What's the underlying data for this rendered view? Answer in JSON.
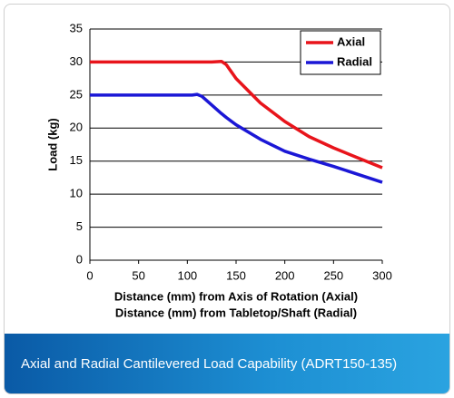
{
  "chart_data": {
    "type": "line",
    "x_label": [
      "Distance (mm) from Axis of Rotation (Axial)",
      "Distance (mm) from Tabletop/Shaft (Radial)"
    ],
    "y_label": "Load (kg)",
    "x": [
      0,
      100,
      105,
      110,
      115,
      125,
      135,
      140,
      150,
      175,
      200,
      225,
      250,
      275,
      300
    ],
    "series": [
      {
        "name": "Axial",
        "color": "#e8141b",
        "values": [
          30,
          30,
          30,
          30,
          30,
          30,
          30.1,
          29.6,
          27.5,
          23.8,
          21,
          18.7,
          17,
          15.5,
          14
        ]
      },
      {
        "name": "Radial",
        "color": "#1b17d6",
        "values": [
          25,
          25,
          25,
          25.1,
          24.8,
          23.5,
          22.2,
          21.6,
          20.5,
          18.3,
          16.5,
          15.3,
          14.2,
          13,
          11.8
        ]
      }
    ],
    "xlim": [
      0,
      300
    ],
    "xticks": [
      0,
      50,
      100,
      150,
      200,
      250,
      300
    ],
    "ylim": [
      0,
      35
    ],
    "yticks": [
      0,
      5,
      10,
      15,
      20,
      25,
      30,
      35
    ],
    "grid": true,
    "legend": "top-right"
  },
  "caption": "Axial and Radial Cantilevered Load Capability (ADRT150-135)"
}
